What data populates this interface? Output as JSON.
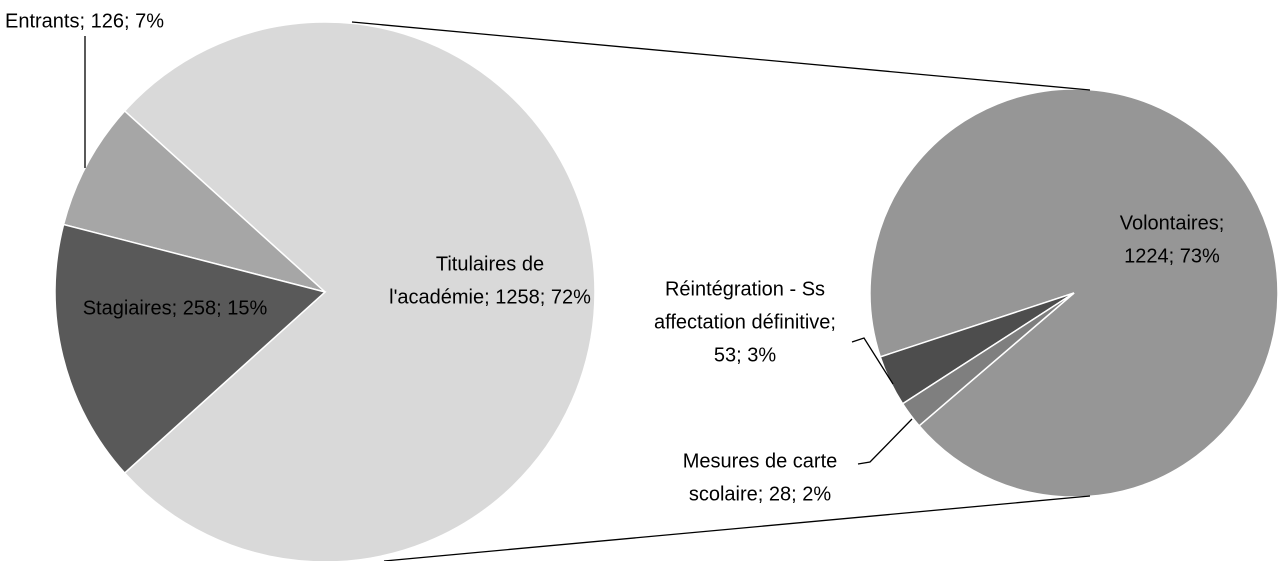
{
  "chart_data": {
    "type": "pie-of-pie",
    "pies": [
      {
        "labels": [
          [
            "Titulaires de",
            "l'académie; 1258; 72%"
          ],
          [
            "Entrants; 126; 7%"
          ],
          [
            "Stagiaires; 258; 15%"
          ]
        ],
        "values": [
          1258,
          126,
          258
        ],
        "colors": [
          "#d9d9d9",
          "#a6a6a6",
          "#595959"
        ]
      },
      {
        "labels": [
          [
            "Volontaires;",
            "1224; 73%"
          ],
          [
            "Réintégration - Ss",
            "affectation définitive;",
            "53; 3%"
          ],
          [
            "Mesures de carte",
            "scolaire; 28; 2%"
          ]
        ],
        "values": [
          1224,
          53,
          28
        ],
        "colors": [
          "#969696",
          "#4d4d4d",
          "#7f7f7f"
        ]
      }
    ]
  }
}
